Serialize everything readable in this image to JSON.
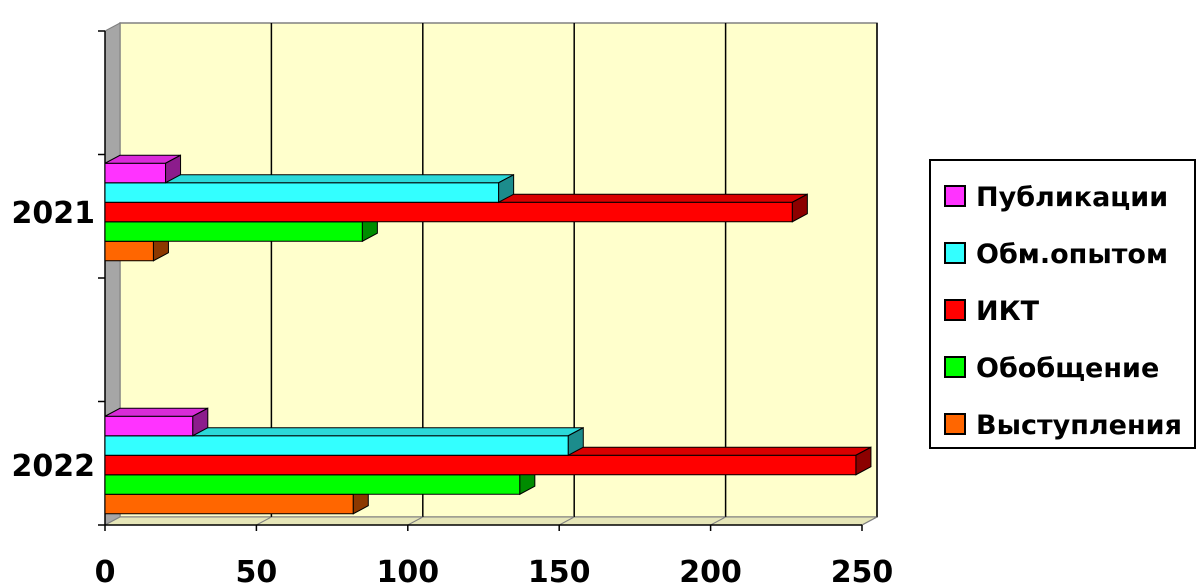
{
  "chart_data": {
    "type": "bar",
    "orientation": "horizontal",
    "three_d": true,
    "categories": [
      "2021",
      "2022"
    ],
    "series": [
      {
        "name": "Публикации",
        "color": "#FF33FF",
        "values": [
          20,
          29
        ]
      },
      {
        "name": "Обм.опытом",
        "color": "#33FFFF",
        "values": [
          130,
          153
        ]
      },
      {
        "name": "ИКТ",
        "color": "#FF0000",
        "values": [
          227,
          248
        ]
      },
      {
        "name": "Обобщение",
        "color": "#00FF00",
        "values": [
          85,
          137
        ]
      },
      {
        "name": "Выступления",
        "color": "#FF6600",
        "values": [
          16,
          82
        ]
      }
    ],
    "x_ticks": [
      "0",
      "50",
      "100",
      "150",
      "200",
      "250"
    ],
    "xlim": [
      0,
      250
    ],
    "grid": true,
    "plot_background": "#FFFFCC",
    "legend_position": "right"
  }
}
